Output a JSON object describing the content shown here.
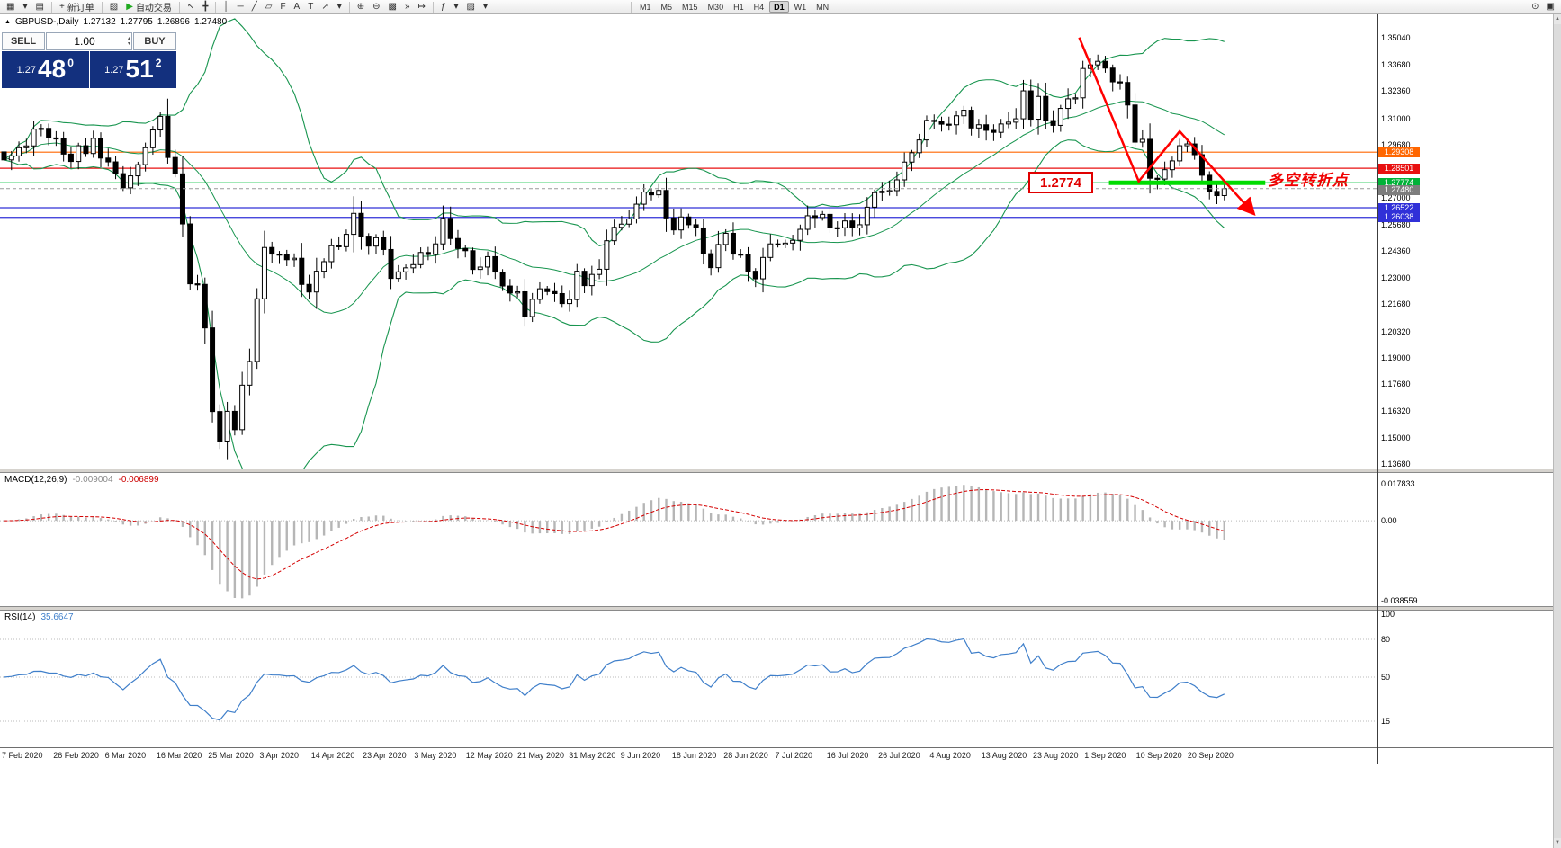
{
  "toolbar": {
    "groups": [
      {
        "items": [
          {
            "name": "new-chart-icon",
            "glyph": "▦"
          },
          {
            "name": "chart-dropdown-icon",
            "glyph": "▾"
          },
          {
            "name": "profiles-icon",
            "glyph": "▤"
          }
        ]
      },
      {
        "items": [
          {
            "name": "new-order-button",
            "glyph": "+",
            "label": "新订单"
          }
        ]
      },
      {
        "items": [
          {
            "name": "metaeditor-icon",
            "glyph": "▧"
          },
          {
            "name": "autotrade-button",
            "glyph": "▶",
            "glyph_color": "#1faa1f",
            "label": "自动交易"
          }
        ]
      },
      {
        "items": [
          {
            "name": "cursor-icon",
            "glyph": "↖"
          },
          {
            "name": "crosshair-icon",
            "glyph": "╋"
          }
        ]
      },
      {
        "items": [
          {
            "name": "vertical-line-icon",
            "glyph": "│"
          },
          {
            "name": "horizontal-line-icon",
            "glyph": "─"
          },
          {
            "name": "trendline-icon",
            "glyph": "╱"
          },
          {
            "name": "channel-icon",
            "glyph": "▱"
          },
          {
            "name": "fibonacci-icon",
            "glyph": "F"
          },
          {
            "name": "text-icon",
            "glyph": "A"
          },
          {
            "name": "label-icon",
            "glyph": "T"
          },
          {
            "name": "arrows-icon",
            "glyph": "↗"
          },
          {
            "name": "shapes-dropdown-icon",
            "glyph": "▾"
          }
        ]
      },
      {
        "items": [
          {
            "name": "zoom-in-icon",
            "glyph": "⊕"
          },
          {
            "name": "zoom-out-icon",
            "glyph": "⊖"
          },
          {
            "name": "grid-icon",
            "glyph": "▩"
          },
          {
            "name": "autoscroll-icon",
            "glyph": "»"
          },
          {
            "name": "chart-shift-icon",
            "glyph": "↦"
          }
        ]
      },
      {
        "items": [
          {
            "name": "indicators-icon",
            "glyph": "ƒ"
          },
          {
            "name": "indicators-dropdown-icon",
            "glyph": "▾"
          },
          {
            "name": "templates-icon",
            "glyph": "▨"
          },
          {
            "name": "templates-dropdown-icon",
            "glyph": "▾"
          }
        ]
      }
    ],
    "timeframes": {
      "items": [
        "M1",
        "M5",
        "M15",
        "M30",
        "H1",
        "H4",
        "D1",
        "W1",
        "MN"
      ],
      "active": "D1"
    },
    "right_icons": [
      {
        "name": "search-icon",
        "glyph": "⊙"
      },
      {
        "name": "layout-icon",
        "glyph": "▣"
      }
    ]
  },
  "chart_header": {
    "symbol_period": "GBPUSD-,Daily",
    "open": "1.27132",
    "high": "1.27795",
    "low": "1.26896",
    "close": "1.27480"
  },
  "trade_panel": {
    "sell_label": "SELL",
    "buy_label": "BUY",
    "lot": "1.00",
    "sell_small": "1.27",
    "sell_big": "48",
    "sell_sup": "0",
    "buy_small": "1.27",
    "buy_big": "51",
    "buy_sup": "2"
  },
  "glyphs": {
    "marker": "▲",
    "spin_up": "▴",
    "spin_down": "▾",
    "scroll_up": "▲",
    "scroll_down": "▼"
  },
  "annotations": {
    "price_label": {
      "text": "1.2774"
    },
    "turning_point": {
      "text": "多空转折点"
    }
  },
  "macd": {
    "label": "MACD(12,26,9)",
    "value1": "-0.009004",
    "value2": "-0.006899",
    "axis_labels": [
      "0.017833",
      "0.00",
      "-0.038559"
    ],
    "axis_values": [
      0.017833,
      0,
      -0.038559
    ]
  },
  "rsi": {
    "label": "RSI(14)",
    "value": "35.6647",
    "axis_labels": [
      "100",
      "80",
      "50",
      "15"
    ],
    "axis_values": [
      100,
      80,
      50,
      15
    ]
  },
  "colors": {
    "bull": "#ffffff",
    "bear": "#000000",
    "bollinger": "#18954f",
    "macd_hist": "#b6b6b6",
    "macd_signal": "#d40000",
    "rsi_line": "#3f7fca",
    "trend": "#ff0000",
    "segment": "#00dc00",
    "current_price": "#9a9a9a",
    "current_price_badge": "#7d7d7d"
  },
  "chart_data": {
    "type": "candlestick",
    "symbol": "GBPUSD-",
    "timeframe": "Daily",
    "x_labels": [
      "7 Feb 2020",
      "26 Feb 2020",
      "6 Mar 2020",
      "16 Mar 2020",
      "25 Mar 2020",
      "3 Apr 2020",
      "14 Apr 2020",
      "23 Apr 2020",
      "3 May 2020",
      "12 May 2020",
      "21 May 2020",
      "31 May 2020",
      "9 Jun 2020",
      "18 Jun 2020",
      "28 Jun 2020",
      "7 Jul 2020",
      "16 Jul 2020",
      "26 Jul 2020",
      "4 Aug 2020",
      "13 Aug 2020",
      "23 Aug 2020",
      "1 Sep 2020",
      "10 Sep 2020",
      "20 Sep 2020"
    ],
    "closes": [
      1.2892,
      1.2912,
      1.2953,
      1.2962,
      1.3046,
      1.305,
      1.3002,
      1.2999,
      1.2921,
      1.2884,
      1.2963,
      1.2924,
      1.3,
      1.2901,
      1.2882,
      1.2823,
      1.2752,
      1.2812,
      1.2868,
      1.2953,
      1.3042,
      1.311,
      1.2904,
      1.2822,
      1.2571,
      1.2271,
      1.2268,
      1.205,
      1.1631,
      1.1483,
      1.1632,
      1.154,
      1.1763,
      1.1882,
      1.2196,
      1.2453,
      1.242,
      1.2417,
      1.2392,
      1.2399,
      1.2268,
      1.223,
      1.2334,
      1.2382,
      1.2462,
      1.2457,
      1.2519,
      1.2624,
      1.251,
      1.246,
      1.2502,
      1.2443,
      1.2298,
      1.2331,
      1.2351,
      1.2367,
      1.2428,
      1.2418,
      1.2471,
      1.2599,
      1.2498,
      1.2448,
      1.2437,
      1.2343,
      1.2355,
      1.2407,
      1.233,
      1.226,
      1.2225,
      1.2231,
      1.2107,
      1.2193,
      1.2246,
      1.2232,
      1.2222,
      1.2172,
      1.2192,
      1.2334,
      1.2262,
      1.2318,
      1.2344,
      1.2487,
      1.2554,
      1.257,
      1.2596,
      1.267,
      1.2731,
      1.2717,
      1.2739,
      1.2601,
      1.2541,
      1.2606,
      1.2567,
      1.2551,
      1.2422,
      1.2352,
      1.2468,
      1.2524,
      1.242,
      1.2417,
      1.2334,
      1.2296,
      1.2403,
      1.2471,
      1.2467,
      1.2475,
      1.2489,
      1.2544,
      1.2612,
      1.2603,
      1.2619,
      1.2551,
      1.2552,
      1.2586,
      1.2551,
      1.2567,
      1.2655,
      1.2728,
      1.2735,
      1.2738,
      1.2792,
      1.2881,
      1.2928,
      1.2992,
      1.309,
      1.3085,
      1.3071,
      1.3068,
      1.3113,
      1.3141,
      1.3052,
      1.3068,
      1.304,
      1.303,
      1.3072,
      1.3081,
      1.3098,
      1.3238,
      1.3096,
      1.321,
      1.3089,
      1.3065,
      1.315,
      1.3198,
      1.3203,
      1.335,
      1.3368,
      1.3386,
      1.3352,
      1.3283,
      1.328,
      1.3167,
      1.2981,
      1.2995,
      1.28,
      1.2796,
      1.2843,
      1.2887,
      1.2963,
      1.2972,
      1.2918,
      1.2815,
      1.2734,
      1.2713,
      1.2748
    ],
    "last_candle": [
      1.27132,
      1.27795,
      1.26896,
      1.2748
    ],
    "bollinger": {
      "period": 20,
      "deviation": 2
    },
    "price_axis": {
      "max": 1.3504,
      "min": 1.1368,
      "ticks": [
        1.3504,
        1.3368,
        1.3236,
        1.31,
        1.2968,
        1.27,
        1.2568,
        1.2436,
        1.23,
        1.2168,
        1.2032,
        1.19,
        1.1768,
        1.1632,
        1.15,
        1.1368
      ]
    },
    "levels": [
      {
        "price": 1.29308,
        "color": "#ff6600",
        "badge_bg": "#ff6600"
      },
      {
        "price": 1.28501,
        "color": "#e81010",
        "badge_bg": "#e81010"
      },
      {
        "price": 1.27774,
        "color": "#00c03c",
        "badge_bg": "#00b238"
      },
      {
        "price": 1.26522,
        "color": "#3030d8",
        "badge_bg": "#3030d8"
      },
      {
        "price": 1.26038,
        "color": "#3030d8",
        "badge_bg": "#3030d8"
      }
    ],
    "current_price": 1.2748,
    "segment": {
      "from_i": 148.5,
      "to_i": 169.5,
      "price": 1.27774
    },
    "trendline": [
      {
        "i": 144.5,
        "p": 1.3505
      },
      {
        "i": 152.5,
        "p": 1.2785
      },
      {
        "i": 158.0,
        "p": 1.3035
      },
      {
        "i": 168.0,
        "p": 1.262
      }
    ]
  }
}
